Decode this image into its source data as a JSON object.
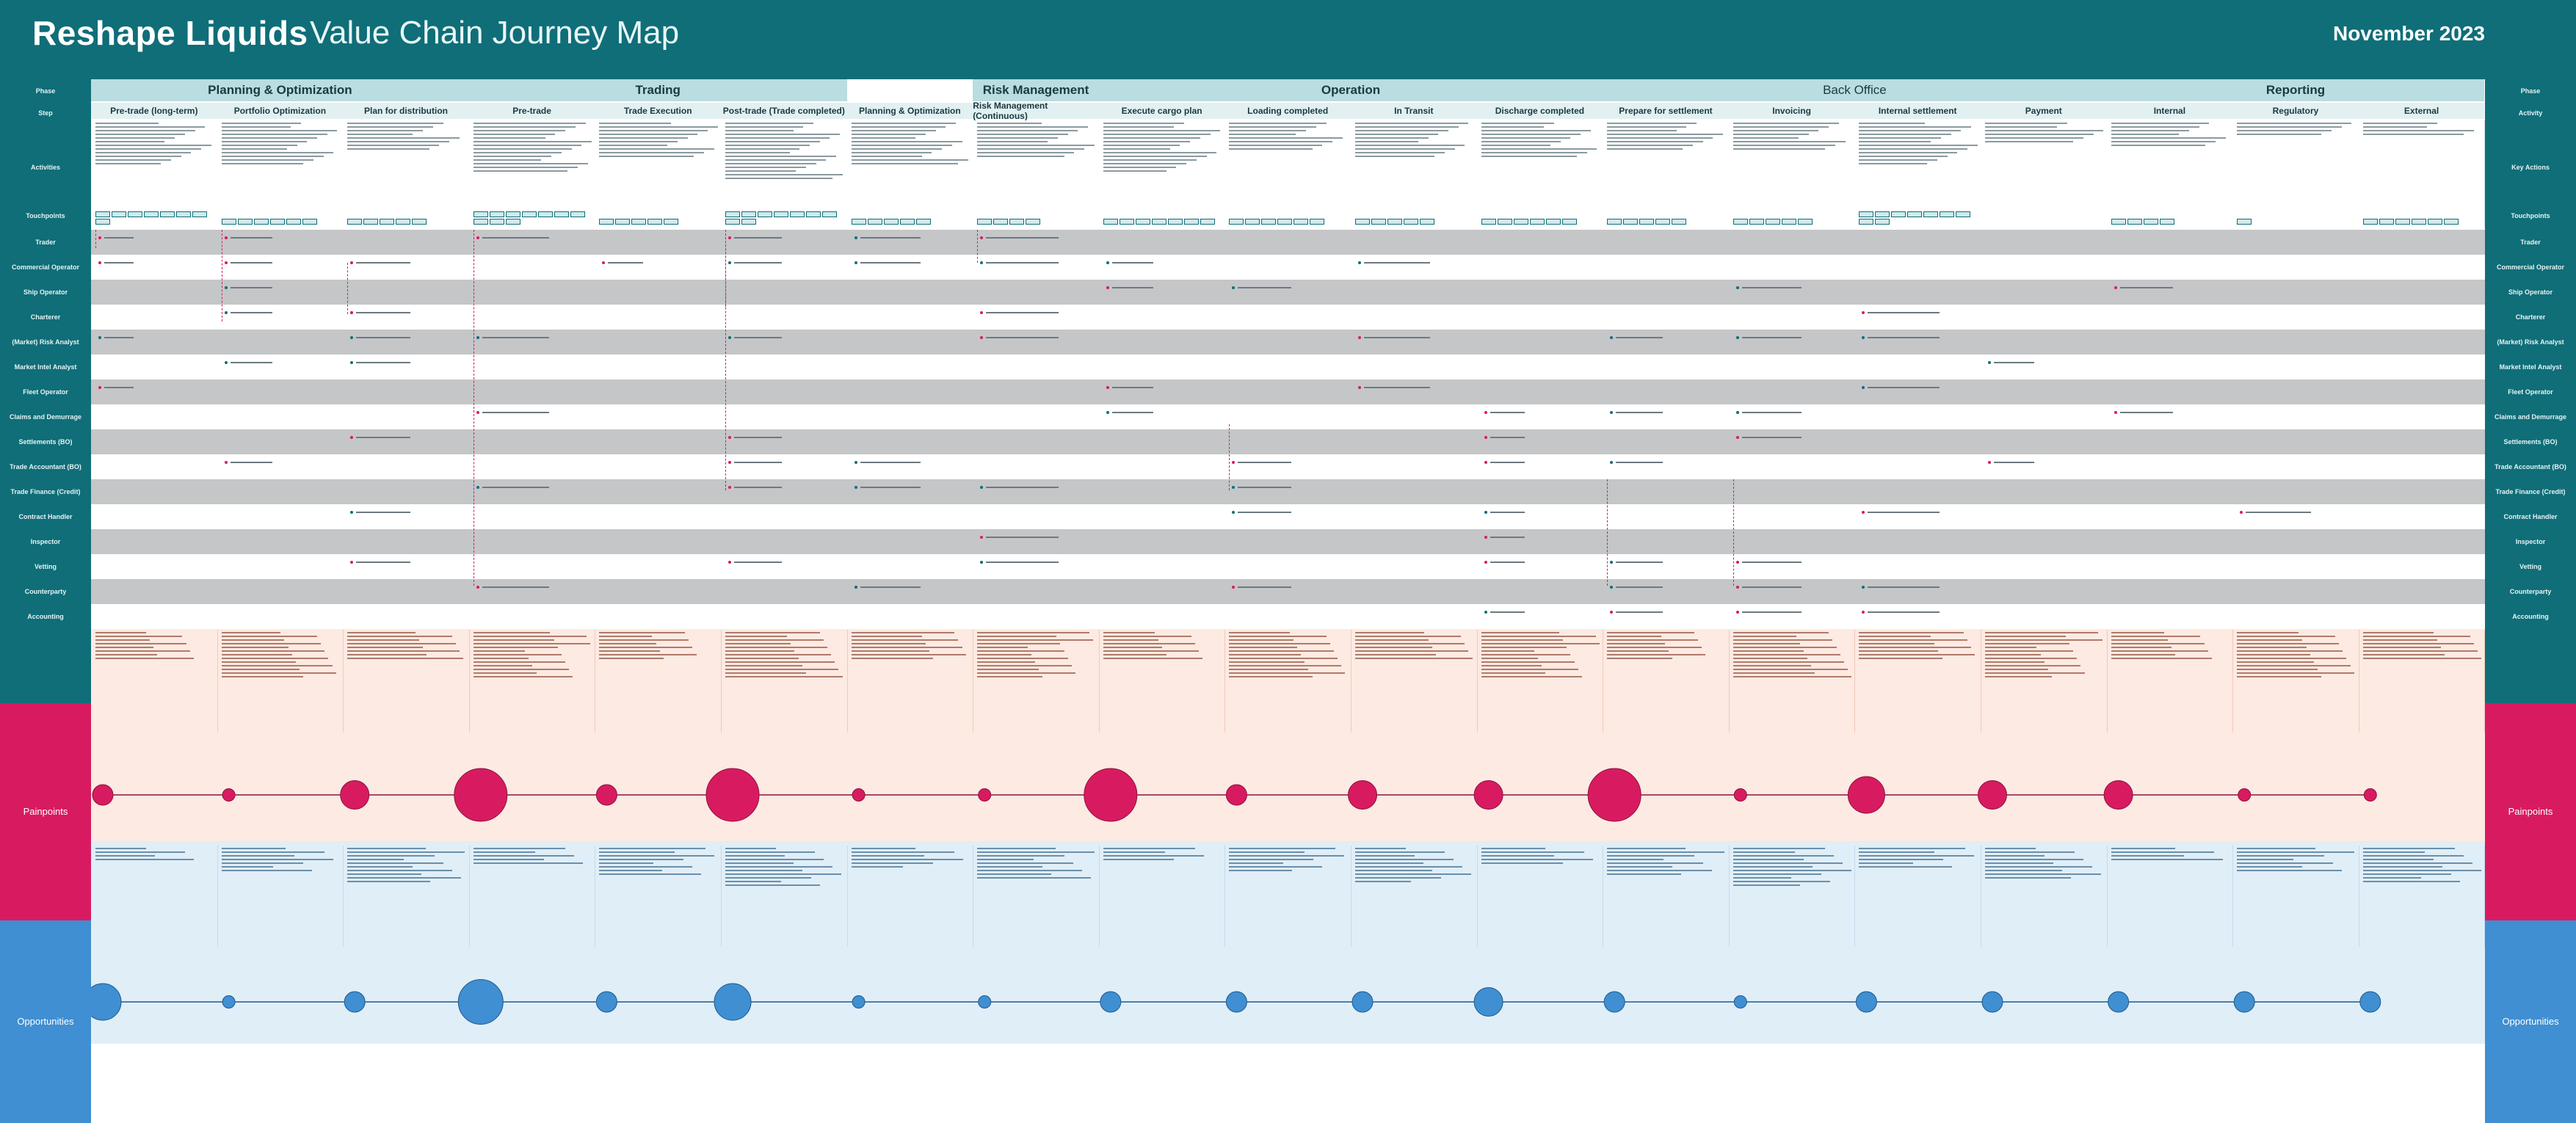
{
  "header": {
    "brand": "Reshape Liquids",
    "title": "Value Chain Journey Map",
    "date": "November 2023"
  },
  "row_labels": {
    "phase": "Phase",
    "step": "Step",
    "activities": "Activities",
    "touchpoints": "Touchpoints",
    "actors": [
      "Trader",
      "Commercial Operator",
      "Ship Operator",
      "Charterer",
      "(Market) Risk Analyst",
      "Market Intel Analyst",
      "Fleet Operator",
      "Claims and Demurrage",
      "Settlements (BO)",
      "Trade Accountant (BO)",
      "Trade Finance (Credit)",
      "Contract Handler",
      "Inspector",
      "Vetting",
      "Counterparty",
      "Accounting"
    ],
    "painpoints": "Painpoints",
    "opportunities": "Opportunities"
  },
  "right_labels": {
    "phase": "Phase",
    "step": "Activity",
    "activities": "Key Actions",
    "touchpoints": "Touchpoints",
    "actors": [
      "Trader",
      "Commercial Operator",
      "Ship Operator",
      "Charterer",
      "(Market) Risk Analyst",
      "Market Intel Analyst",
      "Fleet Operator",
      "Claims and Demurrage",
      "Settlements (BO)",
      "Trade Accountant (BO)",
      "Trade Finance (Credit)",
      "Contract Handler",
      "Inspector",
      "Vetting",
      "Counterparty",
      "Accounting"
    ],
    "painpoints": "Painpoints",
    "opportunities": "Opportunities"
  },
  "phases": [
    {
      "label": "Planning & Optimization",
      "bold": false
    },
    {
      "label": "Trading",
      "bold": false
    },
    {
      "label": "Risk Management",
      "bold": false
    },
    {
      "label": "Operation",
      "bold": false
    },
    {
      "label": "Back Office",
      "bold": false
    },
    {
      "label": "Reporting",
      "bold": false
    }
  ],
  "steps": [
    "Pre-trade (long-term)",
    "Portfolio Optimization",
    "Plan for distribution",
    "Pre-trade",
    "Trade Execution",
    "Post-trade (Trade completed)",
    "Planning & Optimization",
    "Risk Management (Continuous)",
    "Execute cargo plan",
    "Loading completed",
    "In Transit",
    "Discharge completed",
    "Prepare for settlement",
    "Invoicing",
    "Internal settlement",
    "Payment",
    "Internal",
    "Regulatory",
    "External"
  ],
  "painpoint_scores": [
    2,
    1,
    3,
    6,
    2,
    6,
    1,
    1,
    6,
    2,
    3,
    3,
    6,
    1,
    4,
    3,
    3,
    1,
    1
  ],
  "opportunity_scores": [
    4,
    1,
    2,
    5,
    2,
    4,
    1,
    1,
    2,
    2,
    2,
    3,
    2,
    1,
    2,
    2,
    2,
    2,
    2
  ]
}
